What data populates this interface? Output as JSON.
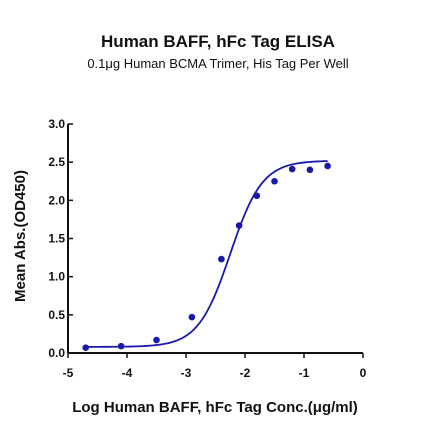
{
  "chart_data": {
    "type": "scatter",
    "title": "Human BAFF, hFc Tag ELISA",
    "subtitle": "0.1μg Human BCMA Trimer, His Tag Per Well",
    "xlabel": "Log Human BAFF, hFc Tag Conc.(μg/ml)",
    "ylabel": "Mean Abs.(OD450)",
    "xlim": [
      -5,
      0
    ],
    "ylim": [
      0,
      3.0
    ],
    "x_ticks": [
      "-5",
      "-4",
      "-3",
      "-2",
      "-1",
      "0"
    ],
    "y_ticks": [
      "0.0",
      "0.5",
      "1.0",
      "1.5",
      "2.0",
      "2.5",
      "3.0"
    ],
    "grid": false,
    "color": "#1a1aaa",
    "series": [
      {
        "x": [
          -4.7,
          -4.1,
          -3.5,
          -2.9,
          -2.4,
          -2.1,
          -1.8,
          -1.5,
          -1.2,
          -0.9,
          -0.6
        ],
        "y": [
          0.07,
          0.09,
          0.17,
          0.47,
          1.23,
          1.67,
          2.06,
          2.25,
          2.41,
          2.4,
          2.45
        ]
      }
    ],
    "fit_curve": {
      "type": "4PL sigmoid",
      "bottom": 0.08,
      "top": 2.52,
      "log_ec50": -2.25,
      "hill": 1.6
    }
  }
}
